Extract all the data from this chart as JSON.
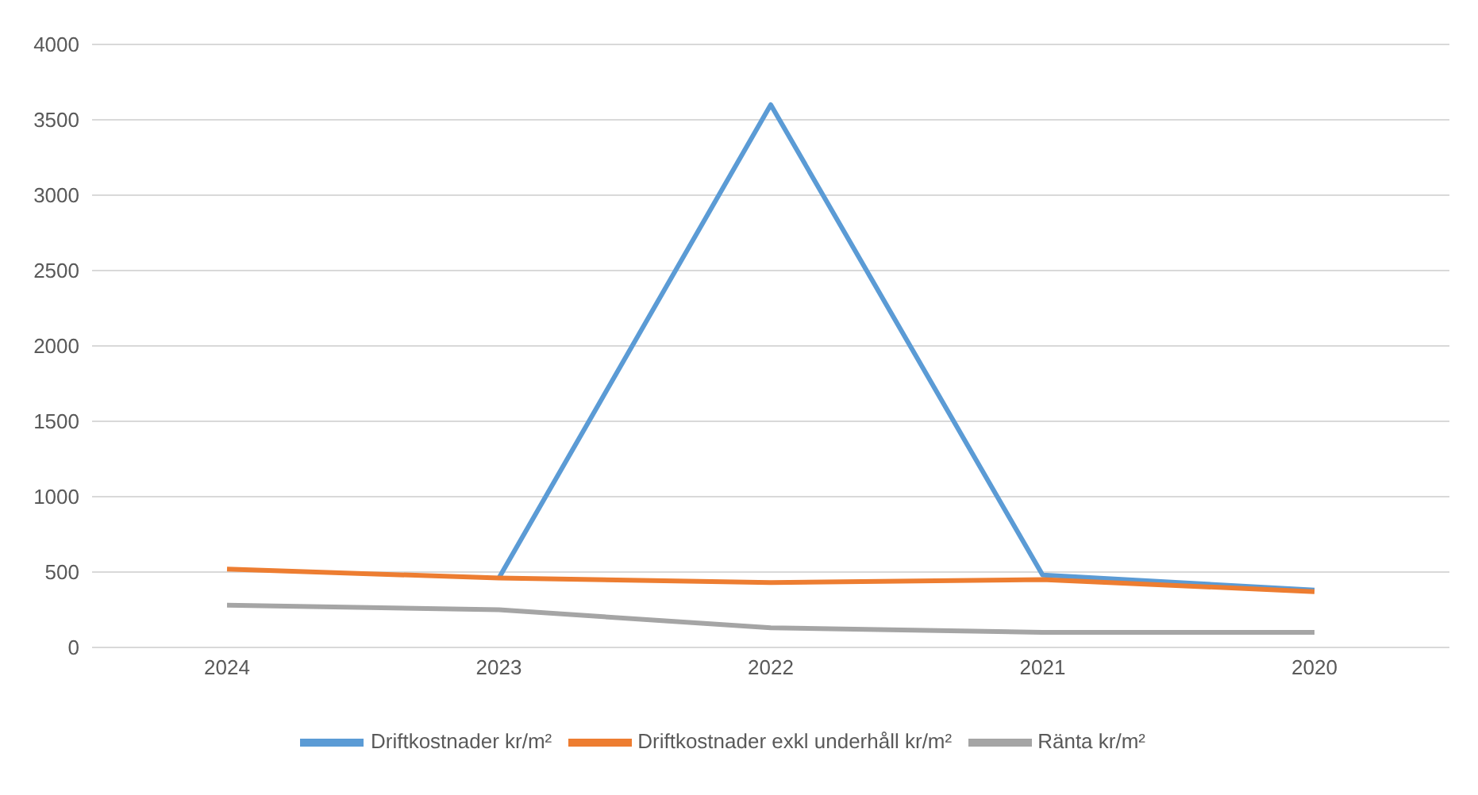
{
  "chart_data": {
    "type": "line",
    "categories": [
      "2024",
      "2023",
      "2022",
      "2021",
      "2020"
    ],
    "series": [
      {
        "name": "Driftkostnader kr/m²",
        "color": "#5b9bd5",
        "values": [
          null,
          460,
          3600,
          480,
          380
        ]
      },
      {
        "name": "Driftkostnader exkl underhåll kr/m²",
        "color": "#ed7d31",
        "values": [
          520,
          460,
          430,
          450,
          370
        ]
      },
      {
        "name": "Ränta kr/m²",
        "color": "#a5a5a5",
        "values": [
          280,
          250,
          130,
          100,
          100
        ]
      }
    ],
    "ylim": [
      0,
      4000
    ],
    "yticks": [
      0,
      500,
      1000,
      1500,
      2000,
      2500,
      3000,
      3500,
      4000
    ],
    "grid": "y",
    "legend": "bottom",
    "marker": "none",
    "line_style": "solid"
  }
}
